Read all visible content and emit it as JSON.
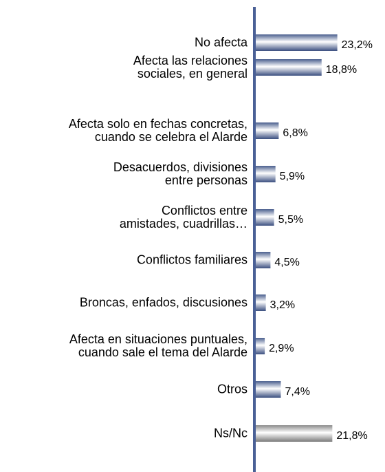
{
  "chart_data": {
    "type": "bar",
    "orientation": "horizontal",
    "categories": [
      "No afecta",
      "Afecta las relaciones\nsociales, en general",
      "Afecta solo en fechas concretas,\ncuando se celebra el Alarde",
      "Desacuerdos, divisiones\nentre personas",
      "Conflictos entre\namistades, cuadrillas…",
      "Conflictos familiares",
      "Broncas, enfados, discusiones",
      "Afecta en situaciones puntuales,\ncuando sale el tema del Alarde",
      "Otros",
      "Ns/Nc"
    ],
    "values": [
      23.2,
      18.8,
      6.8,
      5.9,
      5.5,
      4.5,
      3.2,
      2.9,
      7.4,
      21.8
    ],
    "value_labels": [
      "23,2%",
      "18,8%",
      "6,8%",
      "5,9%",
      "5,5%",
      "4,5%",
      "3,2%",
      "2,9%",
      "7,4%",
      "21,8%"
    ],
    "colors": [
      "blue",
      "blue",
      "blue",
      "blue",
      "blue",
      "blue",
      "blue",
      "blue",
      "blue",
      "gray"
    ],
    "xlim": [
      0,
      35
    ]
  }
}
